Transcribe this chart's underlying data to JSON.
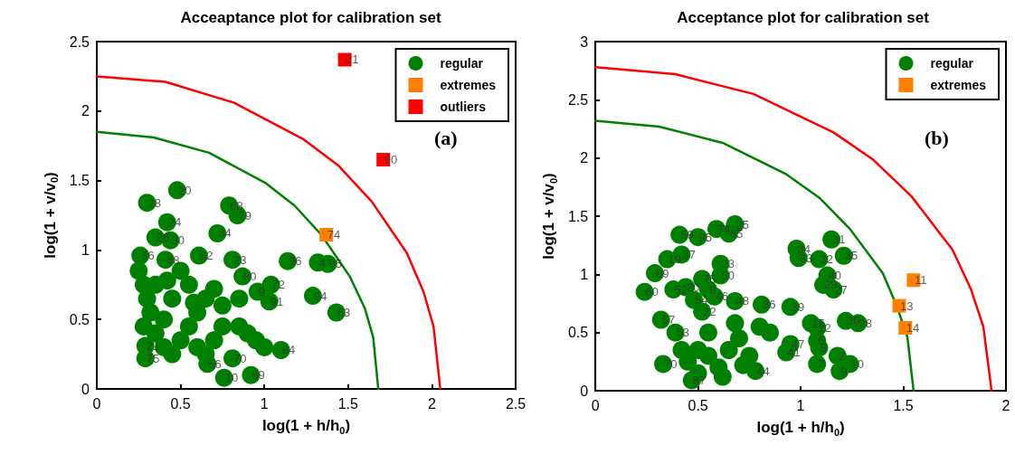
{
  "chart_data": [
    {
      "type": "scatter",
      "title": "Acceaptance plot for calibration set",
      "xlabel": "log(1 + h/h$_{0}$)",
      "ylabel": "log(1 + v/v$_{0}$)",
      "xlim": [
        0,
        2.5
      ],
      "ylim": [
        0,
        2.5
      ],
      "xticks": [
        0,
        0.5,
        1,
        1.5,
        2,
        2.5
      ],
      "yticks": [
        0,
        0.5,
        1,
        1.5,
        2,
        2.5
      ],
      "grid": false,
      "legend": "top right",
      "series": [
        {
          "name": "regular",
          "color": "#008000",
          "marker": "circle",
          "x": [
            0.48,
            0.3,
            0.79,
            0.84,
            0.42,
            0.72,
            0.35,
            0.44,
            0.26,
            0.41,
            0.61,
            0.81,
            1.14,
            1.32,
            1.38,
            0.87,
            1.04,
            0.96,
            1.29,
            1.03,
            1.43,
            1.1,
            0.66,
            0.81,
            0.92,
            0.76,
            0.29,
            0.29,
            0.25,
            0.28,
            0.3,
            0.32,
            0.28,
            0.35,
            0.4,
            0.45,
            0.5,
            0.55,
            0.6,
            0.65,
            0.7,
            0.75,
            0.85,
            0.9,
            0.95,
            1.0,
            0.55,
            0.5,
            0.45,
            0.4,
            0.6,
            0.7,
            0.75,
            0.65,
            0.35,
            0.85,
            0.42,
            0.58
          ],
          "values": [
            1.43,
            1.34,
            1.32,
            1.25,
            1.2,
            1.12,
            1.09,
            1.07,
            0.96,
            0.93,
            0.96,
            0.93,
            0.92,
            0.91,
            0.9,
            0.81,
            0.75,
            0.7,
            0.67,
            0.63,
            0.55,
            0.28,
            0.18,
            0.22,
            0.1,
            0.08,
            0.22,
            0.31,
            0.85,
            0.75,
            0.65,
            0.55,
            0.45,
            0.4,
            0.3,
            0.25,
            0.35,
            0.45,
            0.55,
            0.65,
            0.72,
            0.6,
            0.45,
            0.4,
            0.35,
            0.3,
            0.75,
            0.85,
            0.65,
            0.5,
            0.3,
            0.35,
            0.45,
            0.25,
            0.75,
            0.65,
            0.78,
            0.62
          ]
        },
        {
          "name": "extremes",
          "color": "#ff8000",
          "marker": "square",
          "x": [
            1.37
          ],
          "values": [
            1.11
          ]
        },
        {
          "name": "outliers",
          "color": "#ff0000",
          "marker": "square",
          "x": [
            1.48,
            1.71
          ],
          "values": [
            2.37,
            1.65
          ]
        },
        {
          "type": "line",
          "color": "#008000",
          "marker": "none",
          "x": [
            0,
            0.34,
            0.67,
            1.01,
            1.18,
            1.34,
            1.51,
            1.6,
            1.65,
            1.68
          ],
          "values": [
            1.85,
            1.81,
            1.7,
            1.48,
            1.32,
            1.11,
            0.81,
            0.58,
            0.37,
            0
          ]
        },
        {
          "type": "line",
          "color": "#ff0000",
          "marker": "none",
          "x": [
            0,
            0.41,
            0.82,
            1.23,
            1.44,
            1.64,
            1.85,
            1.95,
            2.01,
            2.05
          ],
          "values": [
            2.25,
            2.21,
            2.06,
            1.8,
            1.61,
            1.35,
            0.98,
            0.7,
            0.45,
            0
          ]
        }
      ],
      "annotations": [
        "(a)",
        {
          "text": "20",
          "x": 0.48,
          "y": 1.43
        },
        {
          "text": "28",
          "x": 0.3,
          "y": 1.34
        },
        {
          "text": "68",
          "x": 0.79,
          "y": 1.32
        },
        {
          "text": "79",
          "x": 0.84,
          "y": 1.25
        },
        {
          "text": "24",
          "x": 0.42,
          "y": 1.2
        },
        {
          "text": "34",
          "x": 0.72,
          "y": 1.12
        },
        {
          "text": "26",
          "x": 0.35,
          "y": 1.09
        },
        {
          "text": "30",
          "x": 0.44,
          "y": 1.07
        },
        {
          "text": "36",
          "x": 0.26,
          "y": 0.96
        },
        {
          "text": "38",
          "x": 0.41,
          "y": 0.93
        },
        {
          "text": "82",
          "x": 0.61,
          "y": 0.96
        },
        {
          "text": "23",
          "x": 0.81,
          "y": 0.93
        },
        {
          "text": "96",
          "x": 1.14,
          "y": 0.92
        },
        {
          "text": "4",
          "x": 1.32,
          "y": 0.91
        },
        {
          "text": "95",
          "x": 1.38,
          "y": 0.9
        },
        {
          "text": "80",
          "x": 0.87,
          "y": 0.81
        },
        {
          "text": "72",
          "x": 1.04,
          "y": 0.75
        },
        {
          "text": "9",
          "x": 0.96,
          "y": 0.7
        },
        {
          "text": "94",
          "x": 1.29,
          "y": 0.67
        },
        {
          "text": "91",
          "x": 1.03,
          "y": 0.63
        },
        {
          "text": "63",
          "x": 1.43,
          "y": 0.55
        },
        {
          "text": "84",
          "x": 1.1,
          "y": 0.28
        },
        {
          "text": "56",
          "x": 0.66,
          "y": 0.18
        },
        {
          "text": "70",
          "x": 0.81,
          "y": 0.22
        },
        {
          "text": "69",
          "x": 0.92,
          "y": 0.1
        },
        {
          "text": "10",
          "x": 0.76,
          "y": 0.08
        },
        {
          "text": "75",
          "x": 0.29,
          "y": 0.22
        },
        {
          "text": "21",
          "x": 0.29,
          "y": 0.31
        },
        {
          "text": "74",
          "x": 1.37,
          "y": 1.11
        },
        {
          "text": "21",
          "x": 1.48,
          "y": 2.37
        },
        {
          "text": "90",
          "x": 1.71,
          "y": 1.65
        }
      ]
    },
    {
      "type": "scatter",
      "title": "Acceptance plot for calibration set",
      "xlabel": "log(1 + h/h$_{0}$)",
      "ylabel": "log(1 + v/v$_{0}$)",
      "xlim": [
        0,
        2
      ],
      "ylim": [
        0,
        3
      ],
      "xticks": [
        0,
        0.5,
        1,
        1.5,
        2
      ],
      "yticks": [
        0,
        0.5,
        1,
        1.5,
        2,
        2.5,
        3
      ],
      "grid": false,
      "legend": "top right",
      "series": [
        {
          "name": "regular",
          "color": "#008000",
          "marker": "circle",
          "x": [
            0.68,
            0.59,
            0.65,
            0.41,
            0.5,
            0.35,
            0.42,
            0.29,
            0.24,
            0.38,
            0.44,
            0.52,
            0.61,
            0.61,
            0.55,
            0.48,
            0.58,
            0.68,
            0.52,
            0.32,
            0.39,
            0.33,
            0.47,
            0.78,
            0.95,
            0.93,
            0.81,
            0.95,
            0.98,
            0.99,
            1.15,
            1.09,
            1.21,
            1.13,
            1.11,
            1.16,
            1.05,
            1.08,
            1.22,
            1.28,
            1.08,
            1.09,
            1.08,
            1.18,
            1.19,
            1.24,
            0.5,
            0.55,
            0.45,
            0.6,
            0.65,
            0.7,
            0.75,
            0.55,
            0.5,
            0.62,
            0.42,
            0.72,
            0.8,
            0.85,
            0.68
          ],
          "values": [
            1.43,
            1.39,
            1.35,
            1.34,
            1.32,
            1.13,
            1.17,
            1.01,
            0.85,
            0.87,
            0.89,
            0.96,
            0.99,
            1.09,
            0.87,
            0.78,
            0.81,
            0.77,
            0.68,
            0.61,
            0.5,
            0.23,
            0.09,
            0.17,
            0.4,
            0.33,
            0.74,
            0.72,
            1.22,
            1.14,
            1.3,
            1.13,
            1.16,
            0.99,
            0.91,
            0.87,
            0.58,
            0.54,
            0.6,
            0.58,
            0.43,
            0.37,
            0.23,
            0.3,
            0.17,
            0.23,
            0.35,
            0.3,
            0.25,
            0.2,
            0.35,
            0.45,
            0.3,
            0.5,
            0.15,
            0.12,
            0.35,
            0.22,
            0.55,
            0.5,
            0.58
          ]
        },
        {
          "name": "extremes",
          "color": "#ff8000",
          "marker": "square",
          "x": [
            1.55,
            1.48,
            1.51
          ],
          "values": [
            0.95,
            0.73,
            0.54
          ]
        },
        {
          "type": "line",
          "color": "#008000",
          "marker": "none",
          "x": [
            0,
            0.31,
            0.62,
            0.93,
            1.09,
            1.24,
            1.4,
            1.47,
            1.52,
            1.55
          ],
          "values": [
            2.32,
            2.27,
            2.13,
            1.86,
            1.66,
            1.39,
            1.01,
            0.72,
            0.46,
            0
          ]
        },
        {
          "type": "line",
          "color": "#ff0000",
          "marker": "none",
          "x": [
            0,
            0.39,
            0.77,
            1.16,
            1.35,
            1.54,
            1.74,
            1.83,
            1.89,
            1.93
          ],
          "values": [
            2.78,
            2.72,
            2.55,
            2.22,
            1.99,
            1.67,
            1.21,
            0.87,
            0.55,
            0
          ]
        }
      ],
      "annotations": [
        "(b)",
        {
          "text": "25",
          "x": 0.68,
          "y": 1.43
        },
        {
          "text": "74",
          "x": 0.59,
          "y": 1.39
        },
        {
          "text": "65",
          "x": 0.65,
          "y": 1.35
        },
        {
          "text": "59",
          "x": 0.41,
          "y": 1.34
        },
        {
          "text": "95",
          "x": 0.5,
          "y": 1.32
        },
        {
          "text": "19",
          "x": 0.35,
          "y": 1.13
        },
        {
          "text": "37",
          "x": 0.42,
          "y": 1.17
        },
        {
          "text": "89",
          "x": 0.29,
          "y": 1.01
        },
        {
          "text": "60",
          "x": 0.24,
          "y": 0.85
        },
        {
          "text": "52",
          "x": 0.38,
          "y": 0.87
        },
        {
          "text": "20",
          "x": 0.44,
          "y": 0.89
        },
        {
          "text": "75",
          "x": 0.52,
          "y": 0.96
        },
        {
          "text": "50",
          "x": 0.61,
          "y": 0.99
        },
        {
          "text": "23",
          "x": 0.61,
          "y": 1.09
        },
        {
          "text": "9",
          "x": 0.55,
          "y": 0.87
        },
        {
          "text": "54",
          "x": 0.48,
          "y": 0.78
        },
        {
          "text": "46",
          "x": 0.58,
          "y": 0.81
        },
        {
          "text": "48",
          "x": 0.68,
          "y": 0.77
        },
        {
          "text": "22",
          "x": 0.52,
          "y": 0.68
        },
        {
          "text": "57",
          "x": 0.32,
          "y": 0.61
        },
        {
          "text": "53",
          "x": 0.39,
          "y": 0.5
        },
        {
          "text": "70",
          "x": 0.33,
          "y": 0.23
        },
        {
          "text": "87",
          "x": 0.47,
          "y": 0.09
        },
        {
          "text": "44",
          "x": 0.78,
          "y": 0.17
        },
        {
          "text": "47",
          "x": 0.95,
          "y": 0.4
        },
        {
          "text": "41",
          "x": 0.93,
          "y": 0.33
        },
        {
          "text": "36",
          "x": 0.81,
          "y": 0.74
        },
        {
          "text": "39",
          "x": 0.95,
          "y": 0.72
        },
        {
          "text": "34",
          "x": 0.98,
          "y": 1.22
        },
        {
          "text": "33",
          "x": 0.99,
          "y": 1.14
        },
        {
          "text": "31",
          "x": 1.15,
          "y": 1.3
        },
        {
          "text": "32",
          "x": 1.09,
          "y": 1.13
        },
        {
          "text": "35",
          "x": 1.21,
          "y": 1.16
        },
        {
          "text": "40",
          "x": 1.13,
          "y": 0.99
        },
        {
          "text": "29",
          "x": 1.11,
          "y": 0.91
        },
        {
          "text": "27",
          "x": 1.16,
          "y": 0.87
        },
        {
          "text": "15",
          "x": 1.05,
          "y": 0.58
        },
        {
          "text": "12",
          "x": 1.08,
          "y": 0.54
        },
        {
          "text": "30",
          "x": 1.22,
          "y": 0.6
        },
        {
          "text": "28",
          "x": 1.28,
          "y": 0.58
        },
        {
          "text": "6",
          "x": 1.08,
          "y": 0.43
        },
        {
          "text": "8",
          "x": 1.09,
          "y": 0.37
        },
        {
          "text": "7",
          "x": 1.08,
          "y": 0.23
        },
        {
          "text": "2",
          "x": 1.18,
          "y": 0.3
        },
        {
          "text": "9",
          "x": 1.19,
          "y": 0.17
        },
        {
          "text": "10",
          "x": 1.24,
          "y": 0.23
        },
        {
          "text": "11",
          "x": 1.55,
          "y": 0.95
        },
        {
          "text": "13",
          "x": 1.48,
          "y": 0.73
        },
        {
          "text": "14",
          "x": 1.51,
          "y": 0.54
        }
      ]
    }
  ]
}
